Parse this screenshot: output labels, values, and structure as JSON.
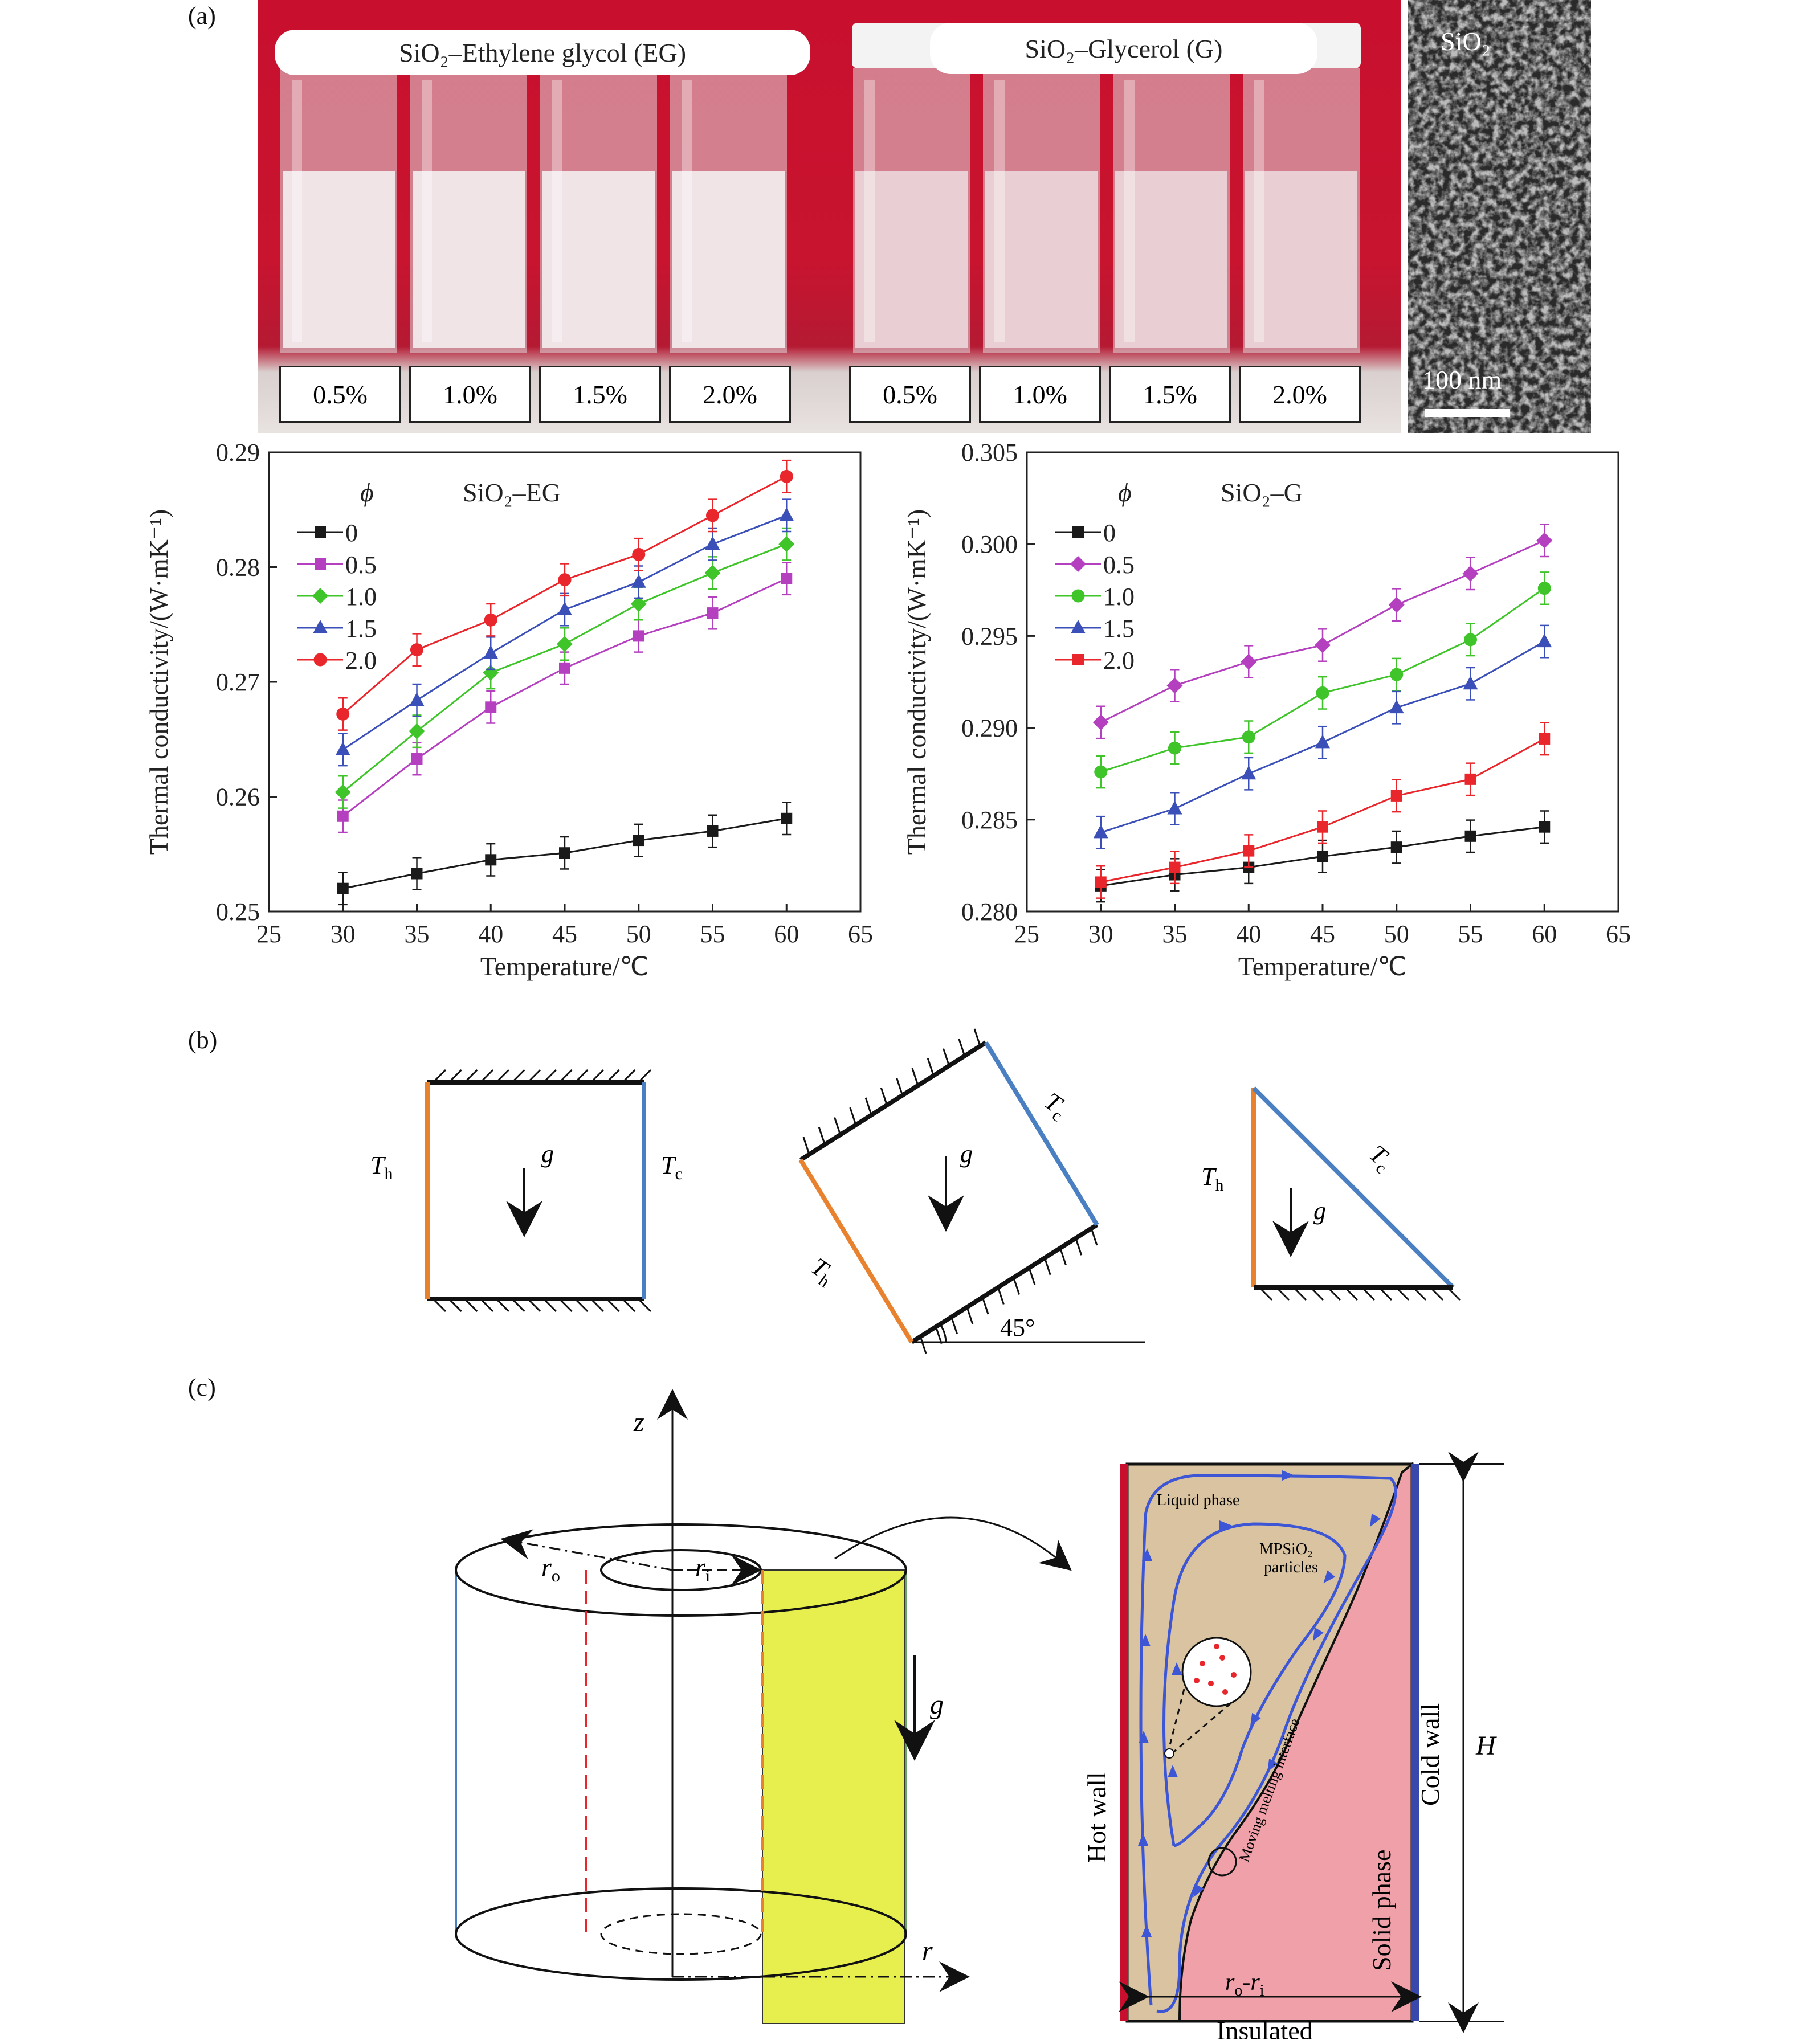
{
  "panels": {
    "a": "(a)",
    "b": "(b)",
    "c": "(c)"
  },
  "photo": {
    "eg_label": "SiO₂–Ethylene glycol (EG)",
    "g_label": "SiO₂–Glycerol (G)",
    "eg_conc": [
      "0.5%",
      "1.0%",
      "1.5%",
      "2.0%"
    ],
    "g_conc": [
      "0.5%",
      "1.0%",
      "1.5%",
      "2.0%"
    ],
    "sem_label": "SiO₂",
    "sem_scale": "100 nm"
  },
  "chart_data": [
    {
      "type": "line",
      "annotation": "SiO₂–EG",
      "legend_title": "ϕ",
      "xlabel": "Temperature/℃",
      "ylabel": "Thermal conductivity/(W·mK⁻¹)",
      "xlim": [
        25,
        65
      ],
      "ylim": [
        0.25,
        0.29
      ],
      "xticks": [
        "25",
        "30",
        "35",
        "40",
        "45",
        "50",
        "55",
        "60",
        "65"
      ],
      "yticks": [
        "0.25",
        "0.26",
        "0.27",
        "0.28",
        "0.29"
      ],
      "legend_position": "top-left",
      "grid": false,
      "x": [
        30,
        35,
        40,
        45,
        50,
        55,
        60
      ],
      "series": [
        {
          "name": "0",
          "color": "#1a1a1a",
          "marker": "square",
          "values": [
            0.252,
            0.2533,
            0.2545,
            0.2551,
            0.2562,
            0.257,
            0.2581
          ]
        },
        {
          "name": "0.5",
          "color": "#b43fbf",
          "marker": "square",
          "values": [
            0.2583,
            0.2633,
            0.2678,
            0.2712,
            0.274,
            0.276,
            0.279
          ]
        },
        {
          "name": "1.0",
          "color": "#3fc42a",
          "marker": "diamond",
          "values": [
            0.2604,
            0.2657,
            0.2708,
            0.2733,
            0.2768,
            0.2795,
            0.282
          ]
        },
        {
          "name": "1.5",
          "color": "#3a4fb8",
          "marker": "triangle",
          "values": [
            0.2641,
            0.2684,
            0.2725,
            0.2763,
            0.2787,
            0.282,
            0.2845
          ]
        },
        {
          "name": "2.0",
          "color": "#e8262b",
          "marker": "circle",
          "values": [
            0.2672,
            0.2728,
            0.2754,
            0.2789,
            0.2811,
            0.2845,
            0.2879
          ]
        }
      ]
    },
    {
      "type": "line",
      "annotation": "SiO₂–G",
      "legend_title": "ϕ",
      "xlabel": "Temperature/℃",
      "ylabel": "Thermal conductivity/(W·mK⁻¹)",
      "xlim": [
        25,
        65
      ],
      "ylim": [
        0.28,
        0.305
      ],
      "xticks": [
        "25",
        "30",
        "35",
        "40",
        "45",
        "50",
        "55",
        "60",
        "65"
      ],
      "yticks": [
        "0.280",
        "0.285",
        "0.290",
        "0.295",
        "0.300",
        "0.305"
      ],
      "legend_position": "top-left",
      "grid": false,
      "x": [
        30,
        35,
        40,
        45,
        50,
        55,
        60
      ],
      "series": [
        {
          "name": "0",
          "color": "#1a1a1a",
          "marker": "square",
          "values": [
            0.2814,
            0.282,
            0.2824,
            0.283,
            0.2835,
            0.2841,
            0.2846
          ]
        },
        {
          "name": "0.5",
          "color": "#b43fbf",
          "marker": "diamond",
          "values": [
            0.2903,
            0.2923,
            0.2936,
            0.2945,
            0.2967,
            0.2984,
            0.3002
          ]
        },
        {
          "name": "1.0",
          "color": "#3fc42a",
          "marker": "circle",
          "values": [
            0.2876,
            0.2889,
            0.2895,
            0.2919,
            0.2929,
            0.2948,
            0.2976
          ]
        },
        {
          "name": "1.5",
          "color": "#3a4fb8",
          "marker": "triangle",
          "values": [
            0.2843,
            0.2856,
            0.2875,
            0.2892,
            0.2911,
            0.2924,
            0.2947
          ]
        },
        {
          "name": "2.0",
          "color": "#e8262b",
          "marker": "square",
          "values": [
            0.2816,
            0.2824,
            0.2833,
            0.2846,
            0.2863,
            0.2872,
            0.2894
          ]
        }
      ]
    }
  ],
  "schematic_b": {
    "hot": "T",
    "hot_sub": "h",
    "cold": "T",
    "cold_sub": "c",
    "gravity": "g",
    "angle": "45°",
    "hot_color": "#e9822e",
    "cold_color": "#4a7fc1"
  },
  "schematic_c": {
    "z": "z",
    "r": "r",
    "ro": "r",
    "ro_sub": "o",
    "ri": "r",
    "ri_sub": "i",
    "g": "g",
    "liquid": "Liquid phase",
    "particles_1": "MPSiO₂",
    "particles_2": "particles",
    "interface": "Moving melting interface",
    "hot_wall": "Hot wall",
    "cold_wall": "Cold wall",
    "solid": "Solid phase",
    "insulated": "Insulated",
    "H": "H",
    "gap": "r",
    "gap_o": "o",
    "gap_dash": "-r",
    "gap_i": "i"
  }
}
